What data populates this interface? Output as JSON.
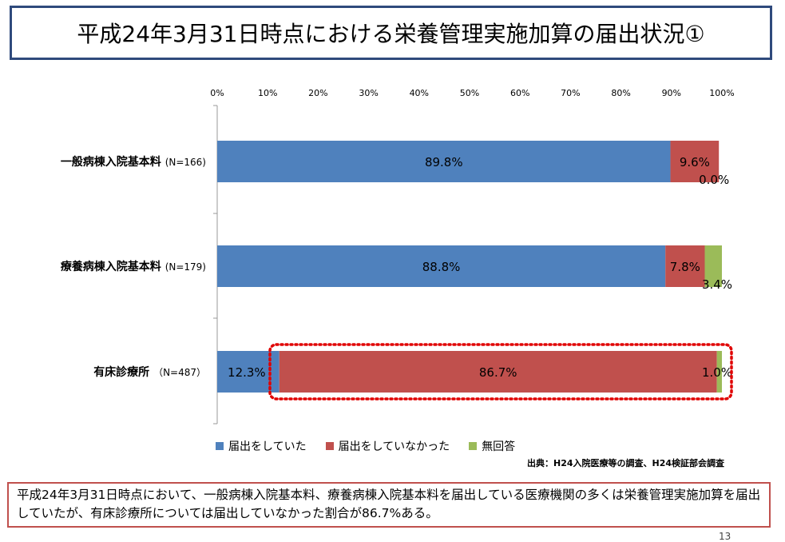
{
  "title": "平成24年3月31日時点における栄養管理実施加算の届出状況①",
  "chart_data": {
    "type": "bar",
    "orientation": "horizontal",
    "stacked": true,
    "percent": true,
    "xlim": [
      0,
      100
    ],
    "ticks": [
      "0%",
      "10%",
      "20%",
      "30%",
      "40%",
      "50%",
      "60%",
      "70%",
      "80%",
      "90%",
      "100%"
    ],
    "categories": [
      {
        "name": "一般病棟入院基本料",
        "n": "(N=166)"
      },
      {
        "name": "療養病棟入院基本料",
        "n": "(N=179)"
      },
      {
        "name": "有床診療所",
        "n": "（N=487）"
      }
    ],
    "series": [
      {
        "name": "届出をしていた",
        "color": "#4f81bd",
        "values": [
          89.8,
          88.8,
          12.3
        ],
        "labels": [
          "89.8%",
          "88.8%",
          "12.3%"
        ]
      },
      {
        "name": "届出をしていなかった",
        "color": "#c0504d",
        "values": [
          9.6,
          7.8,
          86.7
        ],
        "labels": [
          "9.6%",
          "7.8%",
          "86.7%"
        ]
      },
      {
        "name": "無回答",
        "color": "#9bbb59",
        "values": [
          0.0,
          3.4,
          1.0
        ],
        "labels": [
          "0.0%",
          "3.4%",
          "1.0%"
        ]
      }
    ],
    "highlight": {
      "category_index": 2,
      "color": "#e00000"
    }
  },
  "source": "出典：H24入院医療等の調査、H24検証部会調査",
  "summary": "平成24年3月31日時点において、一般病棟入院基本料、療養病棟入院基本料を届出している医療機関の多くは栄養管理実施加算を届出していたが、有床診療所については届出していなかった割合が86.7%ある。",
  "page_number": "13"
}
